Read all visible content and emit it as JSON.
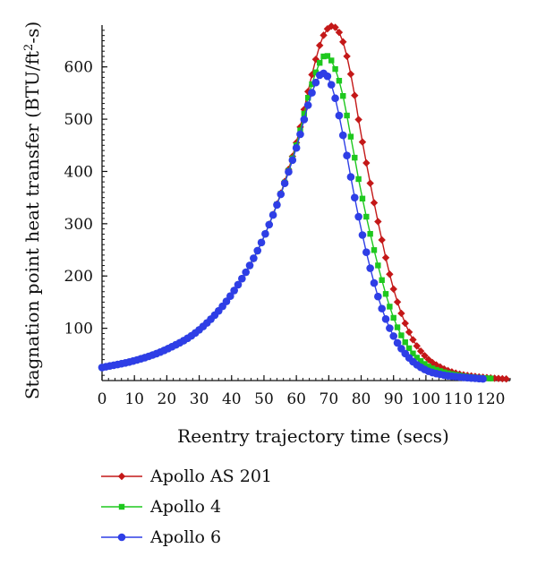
{
  "chart_data": {
    "type": "line",
    "xlabel": "Reentry trajectory time (secs)",
    "ylabel": {
      "main": "Stagnation point heat transfer (BTU/ft",
      "sup": "2",
      "tail": "-s)"
    },
    "xlim": [
      0,
      126
    ],
    "ylim": [
      0,
      680
    ],
    "x_ticks": [
      "0",
      "10",
      "20",
      "30",
      "40",
      "50",
      "60",
      "70",
      "80",
      "90",
      "100",
      "110",
      "120"
    ],
    "y_ticks": [
      "100",
      "200",
      "300",
      "400",
      "500",
      "600"
    ],
    "grid": false,
    "legend_position": "bottom-left",
    "series": [
      {
        "name": "Apollo AS 201",
        "color": "#c41818",
        "marker": "diamond",
        "x_end": 125,
        "points": [
          [
            0,
            25
          ],
          [
            10,
            38
          ],
          [
            20,
            60
          ],
          [
            30,
            97
          ],
          [
            40,
            165
          ],
          [
            50,
            275
          ],
          [
            60,
            455
          ],
          [
            65,
            590
          ],
          [
            68,
            655
          ],
          [
            71,
            678
          ],
          [
            74,
            655
          ],
          [
            77,
            580
          ],
          [
            80,
            470
          ],
          [
            85,
            310
          ],
          [
            90,
            175
          ],
          [
            95,
            90
          ],
          [
            100,
            45
          ],
          [
            105,
            24
          ],
          [
            110,
            13
          ],
          [
            115,
            8
          ],
          [
            120,
            5
          ],
          [
            125,
            3
          ]
        ]
      },
      {
        "name": "Apollo 4",
        "color": "#1ec81e",
        "marker": "square",
        "x_end": 120,
        "points": [
          [
            0,
            25
          ],
          [
            10,
            38
          ],
          [
            20,
            60
          ],
          [
            30,
            97
          ],
          [
            40,
            165
          ],
          [
            50,
            275
          ],
          [
            60,
            450
          ],
          [
            64,
            550
          ],
          [
            67,
            605
          ],
          [
            69,
            622
          ],
          [
            71,
            610
          ],
          [
            74,
            555
          ],
          [
            77,
            460
          ],
          [
            80,
            360
          ],
          [
            85,
            225
          ],
          [
            90,
            120
          ],
          [
            95,
            60
          ],
          [
            100,
            30
          ],
          [
            105,
            17
          ],
          [
            110,
            10
          ],
          [
            115,
            6
          ],
          [
            120,
            4
          ]
        ]
      },
      {
        "name": "Apollo 6",
        "color": "#2e3ee6",
        "marker": "circle",
        "x_end": 118,
        "points": [
          [
            0,
            25
          ],
          [
            10,
            38
          ],
          [
            20,
            60
          ],
          [
            30,
            97
          ],
          [
            40,
            165
          ],
          [
            50,
            275
          ],
          [
            60,
            445
          ],
          [
            64,
            535
          ],
          [
            66,
            570
          ],
          [
            68,
            588
          ],
          [
            70,
            578
          ],
          [
            72,
            540
          ],
          [
            75,
            450
          ],
          [
            78,
            350
          ],
          [
            82,
            235
          ],
          [
            86,
            145
          ],
          [
            90,
            85
          ],
          [
            95,
            42
          ],
          [
            100,
            20
          ],
          [
            105,
            11
          ],
          [
            110,
            7
          ],
          [
            118,
            3
          ]
        ]
      }
    ]
  }
}
